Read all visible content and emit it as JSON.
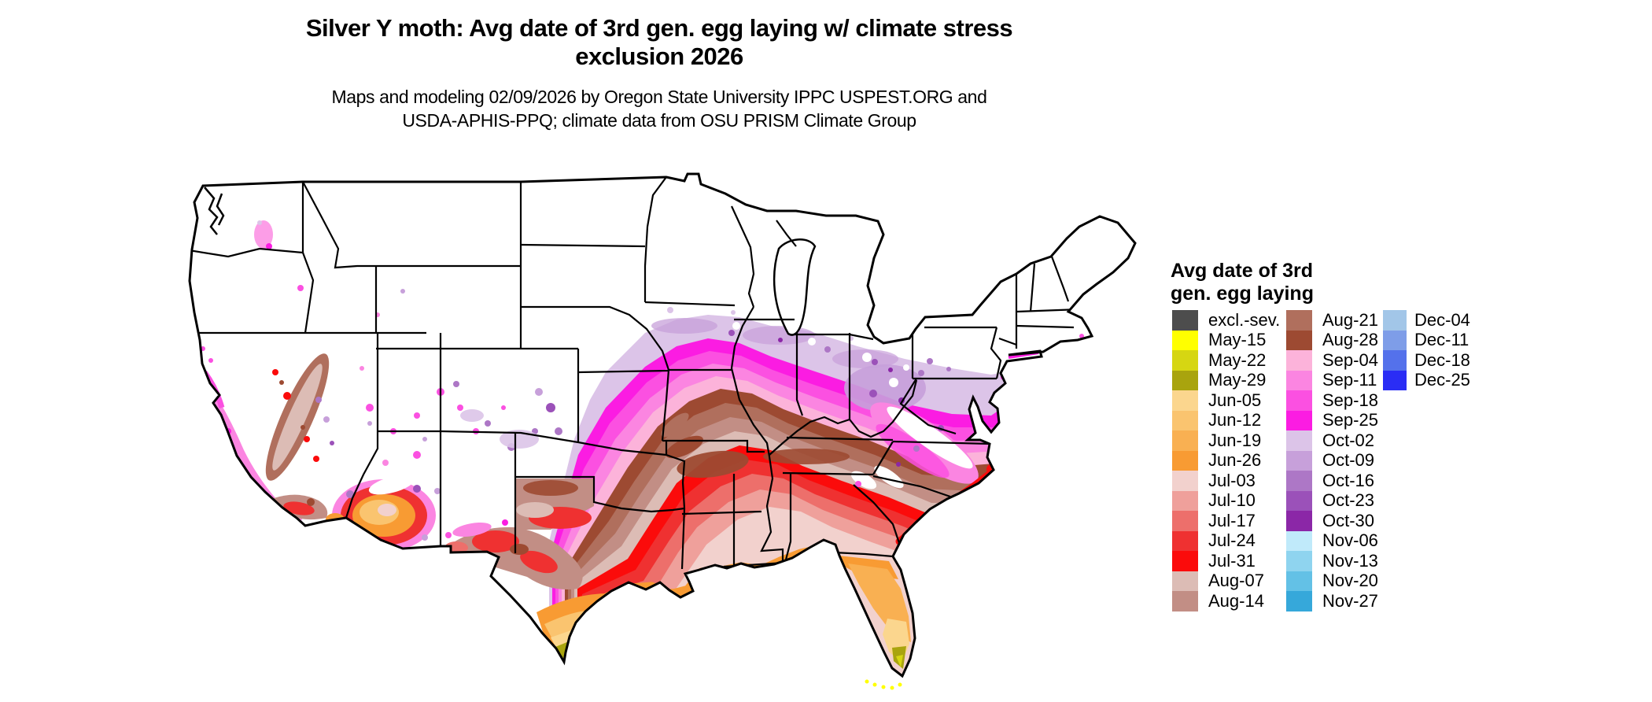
{
  "header": {
    "title_line1": "Silver Y moth: Avg date of 3rd gen. egg laying w/ climate stress",
    "title_line2": "exclusion 2026",
    "subtitle_line1": "Maps and modeling 02/09/2026 by Oregon State University IPPC USPEST.ORG and",
    "subtitle_line2": "USDA-APHIS-PPQ; climate data from OSU PRISM Climate Group"
  },
  "legend": {
    "title": "Avg date of 3rd\ngen. egg laying",
    "columns": [
      {
        "items": [
          {
            "label": "excl.-sev.",
            "color": "#4d4d4d"
          },
          {
            "label": "May-15",
            "color": "#ffff00"
          },
          {
            "label": "May-22",
            "color": "#d6d612"
          },
          {
            "label": "May-29",
            "color": "#a9a40e"
          },
          {
            "label": "Jun-05",
            "color": "#fbd68e"
          },
          {
            "label": "Jun-12",
            "color": "#fac46f"
          },
          {
            "label": "Jun-19",
            "color": "#f9b052"
          },
          {
            "label": "Jun-26",
            "color": "#f89b33"
          },
          {
            "label": "Jul-03",
            "color": "#f2d1cd"
          },
          {
            "label": "Jul-10",
            "color": "#efa09b"
          },
          {
            "label": "Jul-17",
            "color": "#ed6f6b"
          },
          {
            "label": "Jul-24",
            "color": "#ef3131"
          },
          {
            "label": "Jul-31",
            "color": "#fb0b0b"
          },
          {
            "label": "Aug-07",
            "color": "#dcbcb5"
          },
          {
            "label": "Aug-14",
            "color": "#c28e85"
          }
        ]
      },
      {
        "items": [
          {
            "label": "Aug-21",
            "color": "#b06f5d"
          },
          {
            "label": "Aug-28",
            "color": "#9d4a32"
          },
          {
            "label": "Sep-04",
            "color": "#fcb3da"
          },
          {
            "label": "Sep-11",
            "color": "#fb85e1"
          },
          {
            "label": "Sep-18",
            "color": "#fb50e1"
          },
          {
            "label": "Sep-25",
            "color": "#fb1ce2"
          },
          {
            "label": "Oct-02",
            "color": "#dcc4e8"
          },
          {
            "label": "Oct-09",
            "color": "#c7a0da"
          },
          {
            "label": "Oct-16",
            "color": "#ad77c6"
          },
          {
            "label": "Oct-23",
            "color": "#9b51b9"
          },
          {
            "label": "Oct-30",
            "color": "#8b27a7"
          },
          {
            "label": "Nov-06",
            "color": "#c0eafa"
          },
          {
            "label": "Nov-13",
            "color": "#8fd4ef"
          },
          {
            "label": "Nov-20",
            "color": "#63c1e6"
          },
          {
            "label": "Nov-27",
            "color": "#36a8da"
          }
        ]
      },
      {
        "items": [
          {
            "label": "Dec-04",
            "color": "#a2c6e8"
          },
          {
            "label": "Dec-11",
            "color": "#7e9de8"
          },
          {
            "label": "Dec-18",
            "color": "#5471eb"
          },
          {
            "label": "Dec-25",
            "color": "#2a2df5"
          }
        ]
      }
    ]
  },
  "map": {
    "region": "Conterminous United States",
    "no_data_color": "#ffffff",
    "border_color": "#000000"
  }
}
